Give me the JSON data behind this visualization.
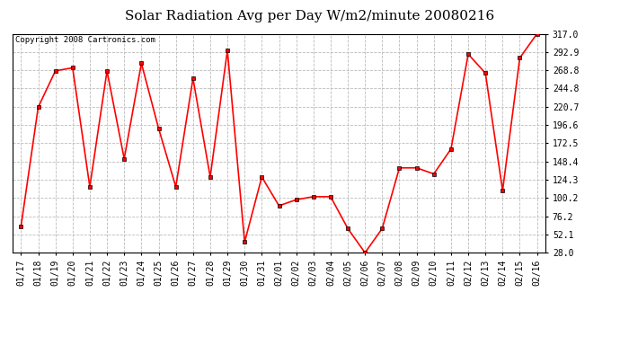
{
  "title": "Solar Radiation Avg per Day W/m2/minute 20080216",
  "copyright_text": "Copyright 2008 Cartronics.com",
  "dates": [
    "01/17",
    "01/18",
    "01/19",
    "01/20",
    "01/21",
    "01/22",
    "01/23",
    "01/24",
    "01/25",
    "01/26",
    "01/27",
    "01/28",
    "01/29",
    "01/30",
    "01/31",
    "02/01",
    "02/02",
    "02/03",
    "02/04",
    "02/05",
    "02/06",
    "02/07",
    "02/08",
    "02/09",
    "02/10",
    "02/11",
    "02/12",
    "02/13",
    "02/14",
    "02/15",
    "02/16"
  ],
  "values": [
    63,
    220,
    268,
    272,
    115,
    268,
    152,
    278,
    192,
    115,
    258,
    128,
    295,
    42,
    128,
    90,
    98,
    102,
    102,
    60,
    28,
    60,
    140,
    140,
    132,
    165,
    290,
    265,
    110,
    285,
    317
  ],
  "y_ticks": [
    28.0,
    52.1,
    76.2,
    100.2,
    124.3,
    148.4,
    172.5,
    196.6,
    220.7,
    244.8,
    268.8,
    292.9,
    317.0
  ],
  "ylim": [
    28.0,
    317.0
  ],
  "line_color": "#ff0000",
  "marker": "s",
  "marker_size": 2.5,
  "marker_color": "#000000",
  "grid_color": "#bbbbbb",
  "grid_style": "--",
  "bg_color": "#ffffff",
  "plot_bg_color": "#ffffff",
  "title_fontsize": 11,
  "tick_fontsize": 7,
  "copyright_fontsize": 6.5,
  "border_color": "#000000"
}
